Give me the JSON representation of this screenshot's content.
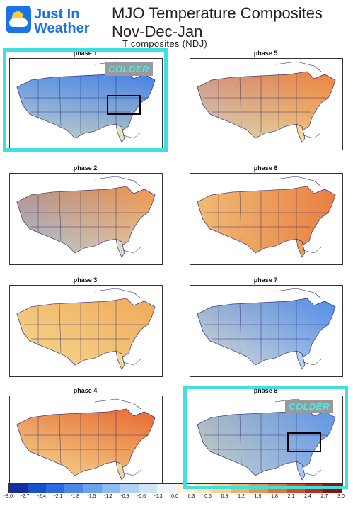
{
  "logo": {
    "line1": "Just In",
    "line2": "Weather"
  },
  "title": {
    "line1": "MJO Temperature Composites",
    "line2": "Nov-Dec-Jan"
  },
  "subtitle": "T composites (NDJ)",
  "panels": [
    {
      "label": "phase 1",
      "colder": "COLDER",
      "highlighted": true,
      "west": "#8fb8ee",
      "east": "#4d8ae8",
      "south": "#e8e0b0",
      "north": "#3b78e0"
    },
    {
      "label": "phase 5",
      "colder": "",
      "highlighted": false,
      "west": "#a8c8f0",
      "east": "#f0a050",
      "south": "#f5d890",
      "north": "#ee6a2a"
    },
    {
      "label": "phase 2",
      "colder": "",
      "highlighted": false,
      "west": "#6a9ee8",
      "east": "#f0a858",
      "south": "#e0d8c8",
      "north": "#ee8840"
    },
    {
      "label": "phase 6",
      "colder": "",
      "highlighted": false,
      "west": "#f0dca0",
      "east": "#e05830",
      "south": "#f0a050",
      "north": "#f0a050"
    },
    {
      "label": "phase 3",
      "colder": "",
      "highlighted": false,
      "west": "#f5d890",
      "east": "#f0a050",
      "south": "#f5d890",
      "north": "#f0b060"
    },
    {
      "label": "phase 7",
      "colder": "",
      "highlighted": false,
      "west": "#f5e0b0",
      "east": "#5a90e8",
      "south": "#b8d0f0",
      "north": "#4d8ae8"
    },
    {
      "label": "phase 4",
      "colder": "",
      "highlighted": false,
      "west": "#f5d890",
      "east": "#ee7a38",
      "south": "#f5d890",
      "north": "#e05a2a"
    },
    {
      "label": "phase 8",
      "colder": "COLDER",
      "highlighted": true,
      "west": "#f5d890",
      "east": "#4d8ae8",
      "south": "#a8c8f0",
      "north": "#6a9ee8"
    }
  ],
  "colorbar": {
    "colors": [
      "#1030a0",
      "#1850c8",
      "#2a6ce0",
      "#4a88e8",
      "#6aa2ee",
      "#8cbaf2",
      "#b0d0f5",
      "#d0e4f8",
      "#f0f4fa",
      "#fdf6e0",
      "#fbe6b8",
      "#f8d090",
      "#f4b468",
      "#ee9448",
      "#e87030",
      "#d84a20",
      "#c02818",
      "#901010"
    ],
    "ticks": [
      "-3.0",
      "-2.7",
      "-2.4",
      "-2.1",
      "-1.8",
      "-1.5",
      "-1.2",
      "-0.9",
      "-0.6",
      "-0.3",
      "0.0",
      "0.3",
      "0.6",
      "0.9",
      "1.2",
      "1.5",
      "1.8",
      "2.1",
      "2.4",
      "2.7",
      "3.0"
    ]
  }
}
